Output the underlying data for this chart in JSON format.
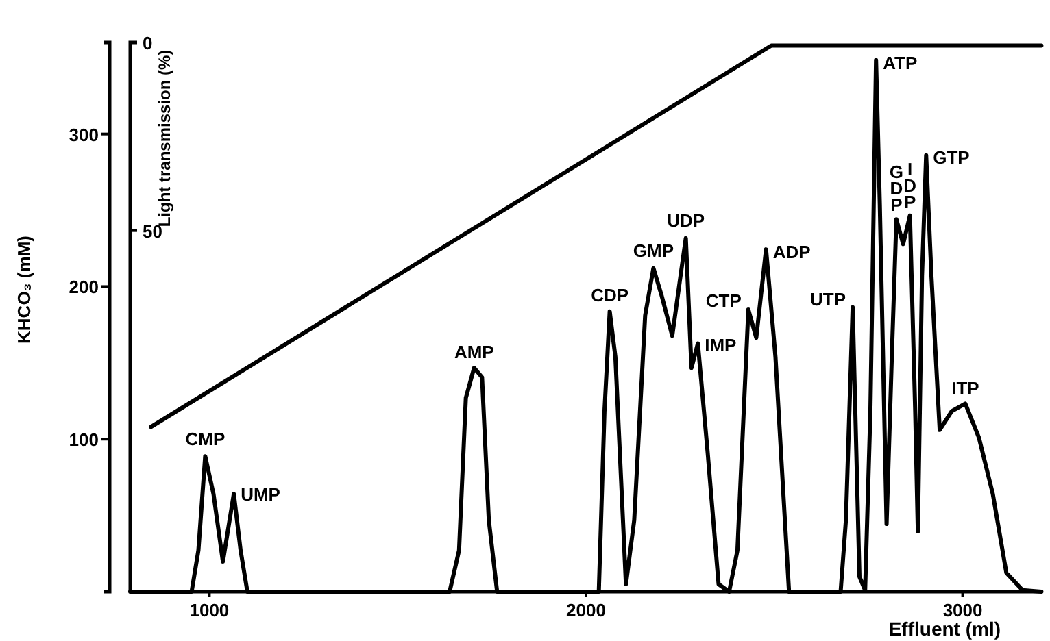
{
  "chart_data": {
    "type": "line",
    "xlabel": "Effluent (ml)",
    "ylabel": "KHCO₃ (mM)",
    "y2label": "Light transmission (%)",
    "xlim": [
      790,
      3210
    ],
    "xticks": [
      1000,
      2000,
      3000
    ],
    "ylim": [
      0,
      360
    ],
    "yticks": [
      100,
      200,
      300
    ],
    "y2lim": [
      146,
      0
    ],
    "y2ticks": [
      0,
      50
    ],
    "grid": false,
    "marker": "none",
    "line_style": "solid",
    "series": [
      {
        "axis": "y2",
        "color": "#000000",
        "x": [
          790,
          953,
          971,
          989,
          1011,
          1036,
          1065,
          1083,
          1101,
          1638,
          1663,
          1681,
          1703,
          1724,
          1742,
          1764,
          2034,
          2049,
          2063,
          2078,
          2106,
          2128,
          2157,
          2179,
          2200,
          2229,
          2251,
          2265,
          2280,
          2297,
          2323,
          2352,
          2380,
          2402,
          2431,
          2452,
          2478,
          2503,
          2539,
          2676,
          2690,
          2708,
          2726,
          2741,
          2755,
          2770,
          2780,
          2798,
          2813,
          2824,
          2842,
          2860,
          2874,
          2881,
          2892,
          2903,
          2917,
          2939,
          2971,
          3007,
          3043,
          3080,
          3116,
          3159,
          3209
        ],
        "values": [
          146,
          146,
          135,
          110,
          120,
          138,
          120,
          135,
          146,
          146,
          135,
          94.5,
          86.5,
          89,
          127,
          146,
          146,
          98,
          71.5,
          83.6,
          144,
          127,
          72.6,
          60,
          67,
          78,
          62,
          52,
          86.5,
          80,
          109,
          144,
          146,
          135,
          71,
          78.5,
          55,
          83.6,
          146,
          146,
          127,
          70.4,
          142,
          145.6,
          98,
          4.7,
          43,
          128,
          80,
          47,
          53.6,
          46,
          98,
          130,
          62,
          30,
          62,
          103,
          98,
          96,
          105,
          120,
          141,
          145.6,
          146
        ]
      },
      {
        "color": "#000000",
        "x": [
          845,
          2492,
          3209
        ],
        "values": [
          108,
          358,
          358
        ]
      }
    ],
    "annotations": [
      {
        "text": "CMP",
        "x": 989,
        "y": 90
      },
      {
        "text": "UMP",
        "x": 1065,
        "y": 65
      },
      {
        "text": "AMP",
        "x": 1703,
        "y": 147
      },
      {
        "text": "CDP",
        "x": 2063,
        "y": 184
      },
      {
        "text": "GMP",
        "x": 2179,
        "y": 213
      },
      {
        "text": "UDP",
        "x": 2265,
        "y": 233
      },
      {
        "text": "IMP",
        "x": 2297,
        "y": 163
      },
      {
        "text": "CTP",
        "x": 2431,
        "y": 185
      },
      {
        "text": "ADP",
        "x": 2478,
        "y": 224
      },
      {
        "text": "UTP",
        "x": 2708,
        "y": 186
      },
      {
        "text": "ATP",
        "x": 2770,
        "y": 348
      },
      {
        "text": "GDP",
        "x": 2824,
        "y": 244
      },
      {
        "text": "IDP",
        "x": 2860,
        "y": 246
      },
      {
        "text": "GTP",
        "x": 2903,
        "y": 286
      },
      {
        "text": "ITP",
        "x": 3007,
        "y": 123
      }
    ]
  }
}
